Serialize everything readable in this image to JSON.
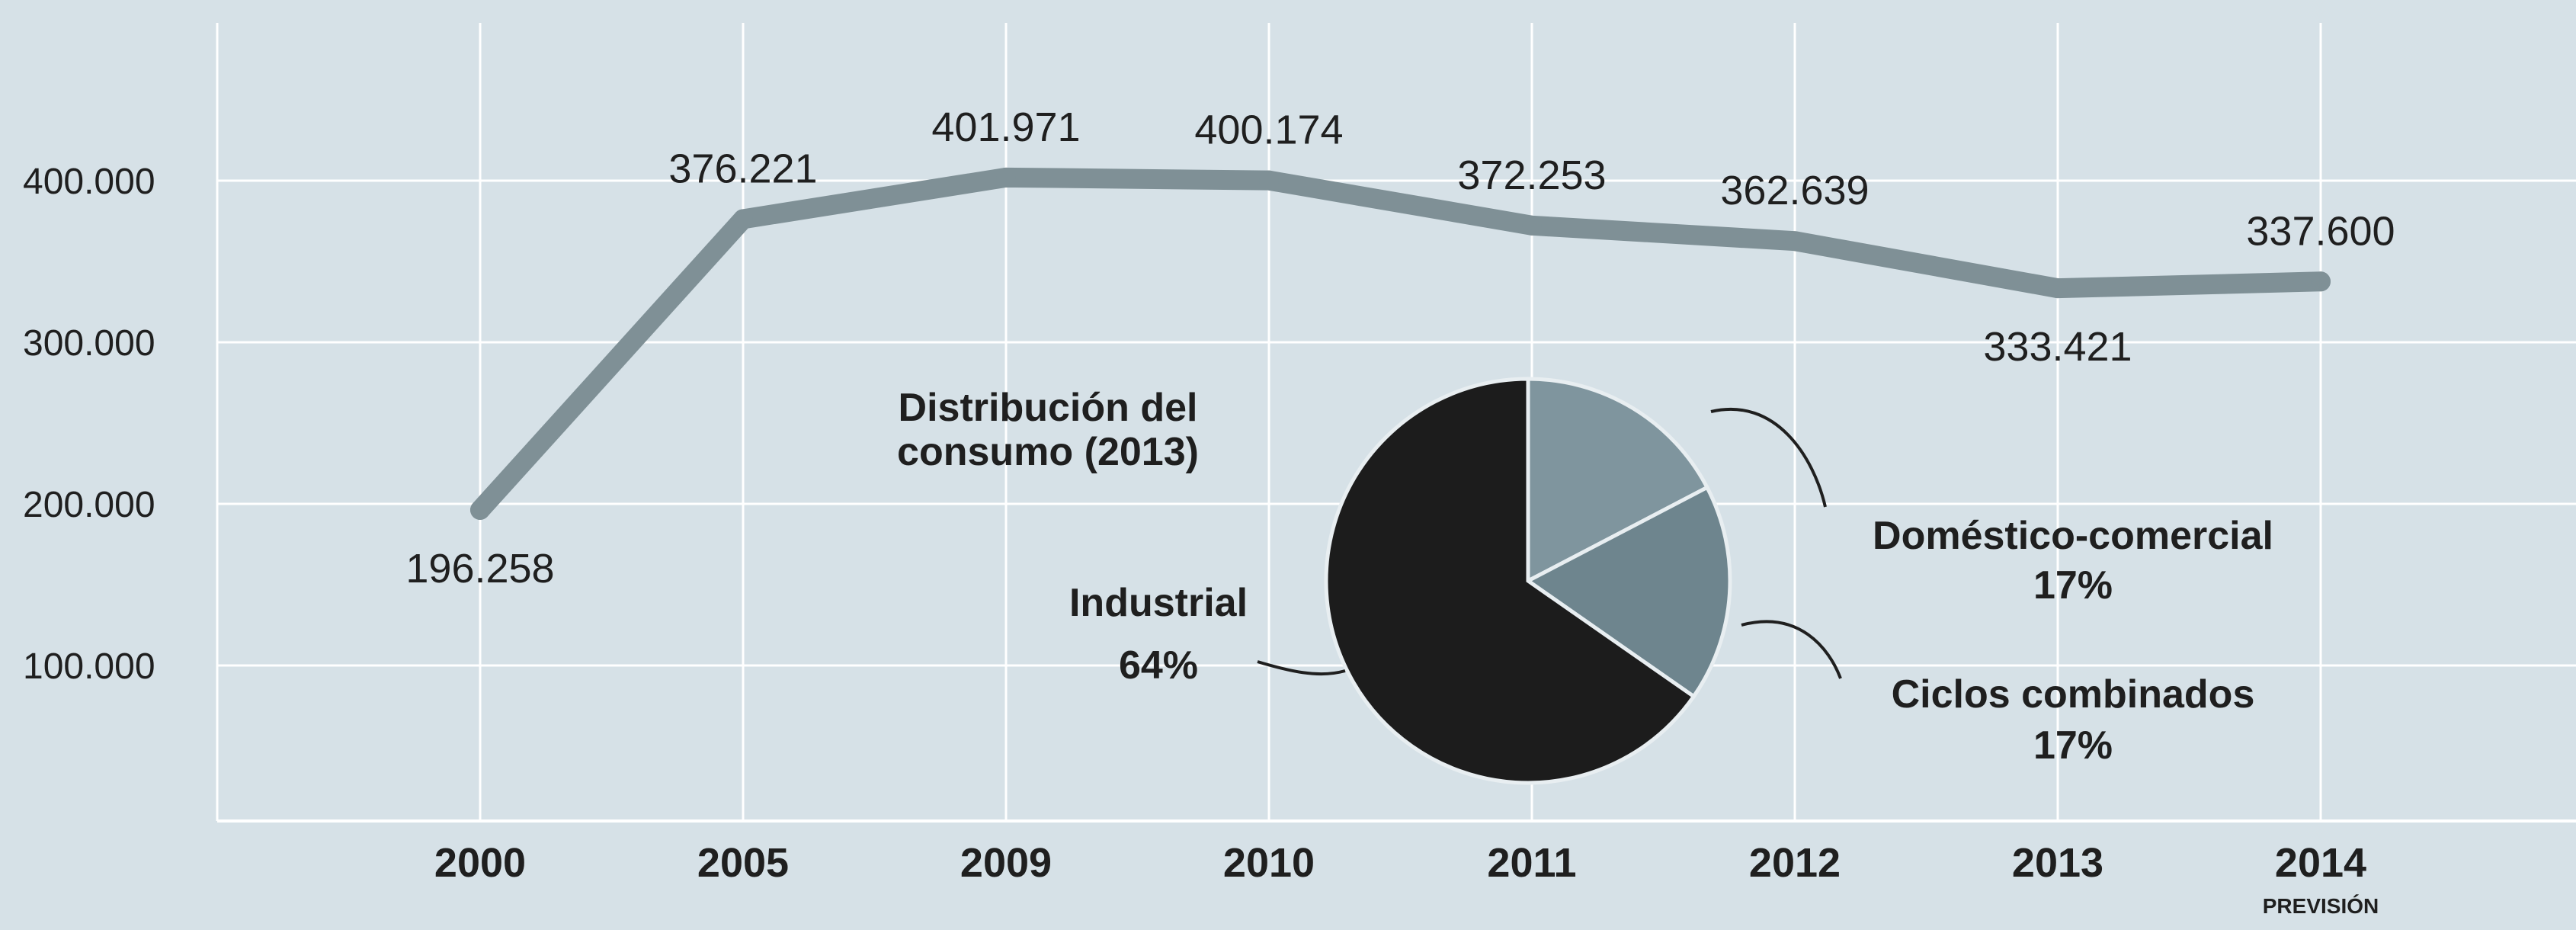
{
  "chart_data": [
    {
      "type": "line",
      "title": "",
      "xlabel": "",
      "ylabel": "",
      "categories": [
        "2000",
        "2005",
        "2009",
        "2010",
        "2011",
        "2012",
        "2013",
        "2014"
      ],
      "category_note": {
        "index": 7,
        "text": "PREVISIÓN"
      },
      "series": [
        {
          "values": [
            196258,
            376221,
            401971,
            400174,
            372253,
            362639,
            333421,
            337600
          ],
          "labels": [
            "196.258",
            "376.221",
            "401.971",
            "400.174",
            "372.253",
            "362.639",
            "333.421",
            "337.600"
          ]
        }
      ],
      "ylim": [
        0,
        500000
      ],
      "yticks": [
        100000,
        200000,
        300000,
        400000
      ],
      "ytick_labels": [
        "100.000",
        "200.000",
        "300.000",
        "400.000"
      ],
      "grid": true,
      "colors": {
        "background": "#d6e1e7",
        "grid": "#ffffff",
        "line": "#7f9096",
        "text": "#1f1f1f"
      }
    },
    {
      "type": "pie",
      "title": "Distribución del consumo (2013)",
      "title_lines": [
        "Distribución del",
        "consumo (2013)"
      ],
      "slices": [
        {
          "name": "Doméstico-comercial",
          "value": 17,
          "label": "17%",
          "color": "#7f959e"
        },
        {
          "name": "Ciclos combinados",
          "value": 17,
          "label": "17%",
          "color": "#6e858e"
        },
        {
          "name": "Industrial",
          "value": 64,
          "label": "64%",
          "color": "#1c1c1c"
        }
      ]
    }
  ]
}
